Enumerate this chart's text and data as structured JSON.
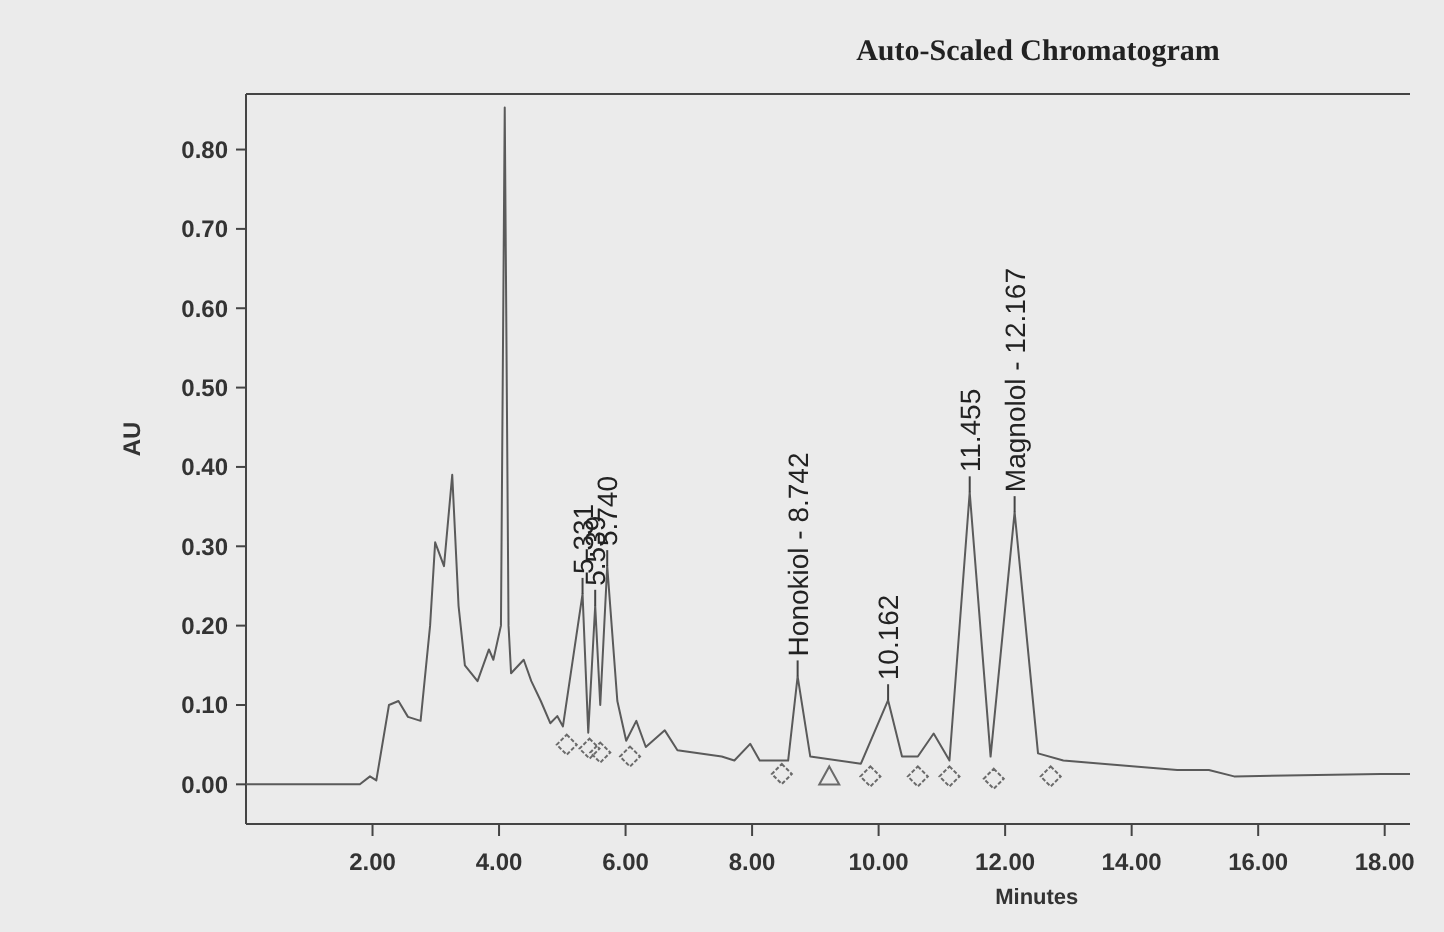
{
  "chart_data": {
    "type": "line",
    "title": "Auto-Scaled Chromatogram",
    "xlabel": "Minutes",
    "ylabel": "AU",
    "xlim": [
      0,
      18.4
    ],
    "ylim": [
      -0.05,
      0.87
    ],
    "xticks": [
      {
        "value": 2,
        "label": "2.00"
      },
      {
        "value": 4,
        "label": "4.00"
      },
      {
        "value": 6,
        "label": "6.00"
      },
      {
        "value": 8,
        "label": "8.00"
      },
      {
        "value": 10,
        "label": "10.00"
      },
      {
        "value": 12,
        "label": "12.00"
      },
      {
        "value": 14,
        "label": "14.00"
      },
      {
        "value": 16,
        "label": "16.00"
      },
      {
        "value": 18,
        "label": "18.00"
      }
    ],
    "yticks": [
      {
        "value": 0,
        "label": "0.00"
      },
      {
        "value": 0.1,
        "label": "0.10"
      },
      {
        "value": 0.2,
        "label": "0.20"
      },
      {
        "value": 0.3,
        "label": "0.30"
      },
      {
        "value": 0.4,
        "label": "0.40"
      },
      {
        "value": 0.5,
        "label": "0.50"
      },
      {
        "value": 0.6,
        "label": "0.60"
      },
      {
        "value": 0.7,
        "label": "0.70"
      },
      {
        "value": 0.8,
        "label": "0.80"
      }
    ],
    "grid": false,
    "series": [
      {
        "color": "#5a5a5a",
        "marker": "none",
        "x": [
          0,
          1.8,
          1.96,
          2.06,
          2.26,
          2.41,
          2.56,
          2.76,
          2.91,
          2.99,
          3.13,
          3.26,
          3.36,
          3.46,
          3.66,
          3.84,
          3.91,
          4.03,
          4.09,
          4.15,
          4.19,
          4.39,
          4.51,
          4.66,
          4.81,
          4.92,
          5.01,
          5.32,
          5.41,
          5.52,
          5.6,
          5.71,
          5.87,
          6.01,
          6.17,
          6.32,
          6.62,
          6.82,
          7.52,
          7.72,
          7.97,
          8.12,
          8.57,
          8.72,
          8.92,
          9.72,
          10.15,
          10.37,
          10.62,
          10.87,
          11.12,
          11.44,
          11.77,
          12.15,
          12.52,
          12.92,
          14.72,
          15.22,
          15.62,
          17.93,
          18.4
        ],
        "values": [
          0,
          0,
          0.01,
          0.005,
          0.1,
          0.105,
          0.085,
          0.08,
          0.2,
          0.305,
          0.275,
          0.39,
          0.225,
          0.15,
          0.13,
          0.17,
          0.157,
          0.2,
          0.853,
          0.2,
          0.14,
          0.157,
          0.13,
          0.105,
          0.077,
          0.086,
          0.073,
          0.24,
          0.065,
          0.225,
          0.1,
          0.275,
          0.105,
          0.055,
          0.08,
          0.047,
          0.068,
          0.043,
          0.035,
          0.03,
          0.051,
          0.03,
          0.03,
          0.136,
          0.035,
          0.026,
          0.106,
          0.035,
          0.035,
          0.064,
          0.03,
          0.368,
          0.035,
          0.343,
          0.039,
          0.03,
          0.018,
          0.018,
          0.01,
          0.013,
          0.013
        ]
      },
      {
        "type": "scatter",
        "color": "#6a6a6a",
        "marker": "diamond",
        "x": [
          5.07,
          5.43,
          5.6,
          6.07,
          8.47,
          9.87,
          10.62,
          11.12,
          11.82,
          12.72
        ],
        "values": [
          0.05,
          0.045,
          0.04,
          0.035,
          0.013,
          0.01,
          0.01,
          0.01,
          0.007,
          0.01
        ]
      },
      {
        "type": "scatter",
        "color": "#6a6a6a",
        "marker": "triangle",
        "x": [
          9.22
        ],
        "values": [
          0.01
        ]
      }
    ],
    "annotations": [
      {
        "text": "5.331",
        "x": 5.32,
        "y": 0.24
      },
      {
        "text": "5.539",
        "x": 5.52,
        "y": 0.225
      },
      {
        "text": "5.740",
        "x": 5.71,
        "y": 0.275
      },
      {
        "text": "Honokiol - 8.742",
        "x": 8.72,
        "y": 0.136
      },
      {
        "text": "10.162",
        "x": 10.15,
        "y": 0.106
      },
      {
        "text": "11.455",
        "x": 11.44,
        "y": 0.368
      },
      {
        "text": "Magnolol - 12.167",
        "x": 12.15,
        "y": 0.343
      }
    ]
  }
}
